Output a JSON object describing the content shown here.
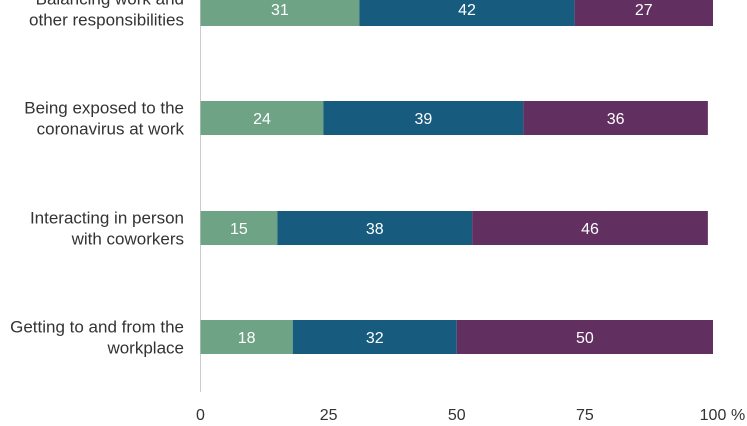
{
  "chart_data": {
    "type": "bar",
    "orientation": "horizontal",
    "stacked": true,
    "categories": [
      [
        "Balancing work and",
        "other responsibilities"
      ],
      [
        "Being exposed to the",
        "coronavirus at work"
      ],
      [
        "Interacting in person",
        "with coworkers"
      ],
      [
        "Getting to and from the",
        "workplace"
      ]
    ],
    "series": [
      {
        "color": "#6fa386",
        "values": [
          31,
          24,
          15,
          18
        ]
      },
      {
        "color": "#175b7e",
        "values": [
          42,
          39,
          38,
          32
        ]
      },
      {
        "color": "#622f61",
        "values": [
          27,
          36,
          46,
          50
        ]
      }
    ],
    "xlim": [
      0,
      100
    ],
    "xticks": [
      "0",
      "25",
      "50",
      "75",
      "100"
    ],
    "xunit": "%",
    "grid": false,
    "legend": "none"
  }
}
